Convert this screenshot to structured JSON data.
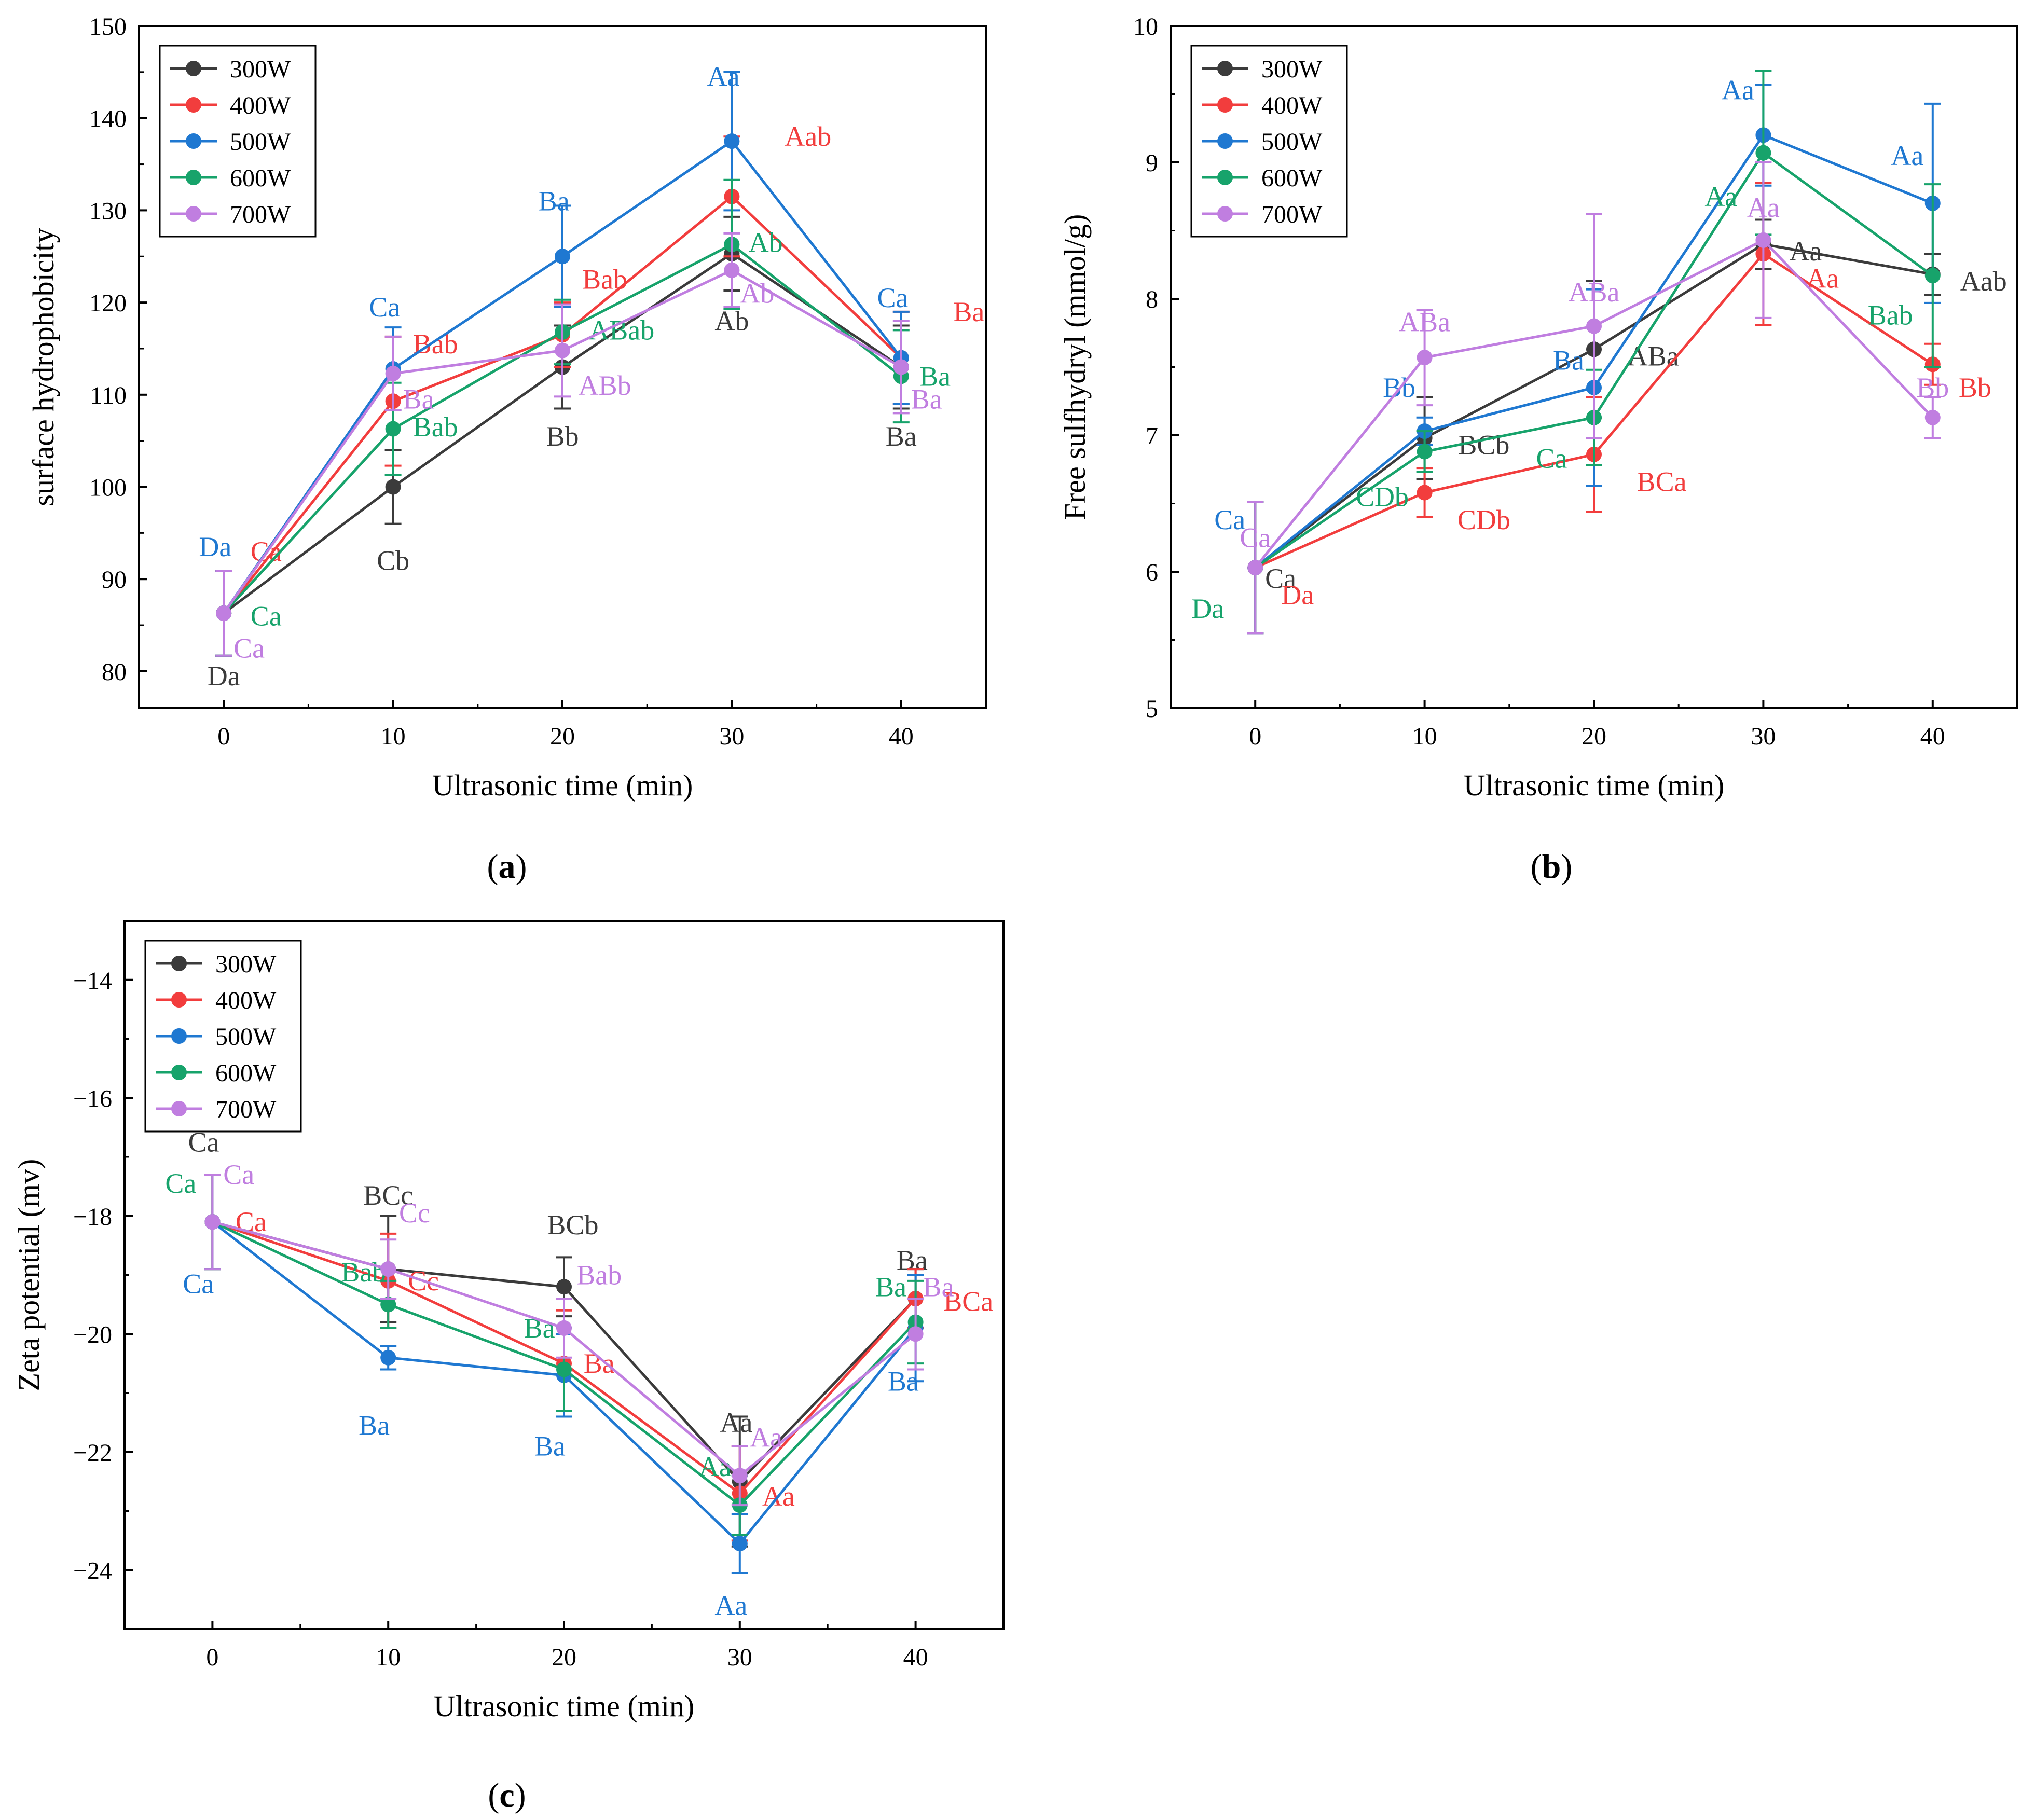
{
  "figure": {
    "series_names": [
      "300W",
      "400W",
      "500W",
      "600W",
      "700W"
    ],
    "series_colors": [
      "#3b3b3b",
      "#f23d3d",
      "#1f78d1",
      "#17a36b",
      "#c07ee0"
    ]
  },
  "chart_data": [
    {
      "id": "a",
      "type": "line",
      "panel_label": "a",
      "title": "",
      "xlabel": "Ultrasonic time (min)",
      "ylabel": "surface hydrophobicity",
      "x": [
        0,
        10,
        20,
        30,
        40
      ],
      "xticks": [
        0,
        10,
        20,
        30,
        40
      ],
      "xlim": [
        -5,
        45
      ],
      "ylim": [
        76,
        150
      ],
      "yticks": [
        80,
        90,
        100,
        110,
        120,
        130,
        140,
        150
      ],
      "legend_position": "top-left",
      "series": [
        {
          "name": "300W",
          "color": "#3b3b3b",
          "values": [
            86.3,
            100.0,
            113.0,
            125.3,
            113.0
          ],
          "errors": [
            4.6,
            4.0,
            4.5,
            4.0,
            4.5
          ],
          "labels": [
            {
              "text": "Da",
              "x": 0,
              "y": 79.5
            },
            {
              "text": "Cb",
              "x": 10,
              "y": 92.0
            },
            {
              "text": "Bb",
              "x": 20,
              "y": 105.5
            },
            {
              "text": "Ab",
              "x": 30,
              "y": 118.0
            },
            {
              "text": "Ba",
              "x": 40,
              "y": 105.5
            }
          ]
        },
        {
          "name": "400W",
          "color": "#f23d3d",
          "values": [
            86.3,
            109.3,
            116.5,
            131.5,
            114.0
          ],
          "errors": [
            4.6,
            7.0,
            3.5,
            6.5,
            5.0
          ],
          "labels": [
            {
              "text": "Ca",
              "x": 2.5,
              "y": 93.0
            },
            {
              "text": "Bab",
              "x": 12.5,
              "y": 115.5
            },
            {
              "text": "Bab",
              "x": 22.5,
              "y": 122.5
            },
            {
              "text": "Aab",
              "x": 34.5,
              "y": 138.0
            },
            {
              "text": "Ba",
              "x": 44.0,
              "y": 119.0
            }
          ]
        },
        {
          "name": "500W",
          "color": "#1f78d1",
          "values": [
            86.3,
            112.8,
            125.0,
            137.5,
            114.0
          ],
          "errors": [
            4.6,
            4.5,
            5.5,
            7.5,
            5.0
          ],
          "labels": [
            {
              "text": "Da",
              "x": -0.5,
              "y": 93.5
            },
            {
              "text": "Ca",
              "x": 9.5,
              "y": 119.5
            },
            {
              "text": "Ba",
              "x": 19.5,
              "y": 131.0
            },
            {
              "text": "Aa",
              "x": 29.5,
              "y": 144.5
            },
            {
              "text": "Ca",
              "x": 39.5,
              "y": 120.5
            }
          ]
        },
        {
          "name": "600W",
          "color": "#17a36b",
          "values": [
            86.3,
            106.3,
            116.8,
            126.3,
            112.0
          ],
          "errors": [
            4.6,
            5.0,
            3.5,
            7.0,
            5.0
          ],
          "labels": [
            {
              "text": "Ca",
              "x": 2.5,
              "y": 86.0
            },
            {
              "text": "Bab",
              "x": 12.5,
              "y": 106.5
            },
            {
              "text": "ABab",
              "x": 23.5,
              "y": 117.0
            },
            {
              "text": "Ab",
              "x": 32.0,
              "y": 126.5
            },
            {
              "text": "Ba",
              "x": 42.0,
              "y": 112.0
            }
          ]
        },
        {
          "name": "700W",
          "color": "#c07ee0",
          "values": [
            86.3,
            112.3,
            114.8,
            123.5,
            113.0
          ],
          "errors": [
            4.6,
            4.0,
            5.0,
            4.0,
            5.0
          ],
          "labels": [
            {
              "text": "Ca",
              "x": 1.5,
              "y": 82.5
            },
            {
              "text": "Ba",
              "x": 11.5,
              "y": 109.5
            },
            {
              "text": "ABb",
              "x": 22.5,
              "y": 111.0
            },
            {
              "text": "Ab",
              "x": 31.5,
              "y": 121.0
            },
            {
              "text": "Ba",
              "x": 41.5,
              "y": 109.5
            }
          ]
        }
      ]
    },
    {
      "id": "b",
      "type": "line",
      "panel_label": "b",
      "title": "",
      "xlabel": "Ultrasonic time (min)",
      "ylabel": "Free sulfhydryl (mmol/g)",
      "x": [
        0,
        10,
        20,
        30,
        40
      ],
      "xticks": [
        0,
        10,
        20,
        30,
        40
      ],
      "xlim": [
        -5,
        45
      ],
      "ylim": [
        5,
        10
      ],
      "yticks": [
        5,
        6,
        7,
        8,
        9,
        10
      ],
      "legend_position": "top-left",
      "series": [
        {
          "name": "300W",
          "color": "#3b3b3b",
          "values": [
            6.03,
            6.98,
            7.63,
            8.4,
            8.18
          ],
          "errors": [
            0.48,
            0.3,
            0.5,
            0.18,
            0.15
          ],
          "labels": [
            {
              "text": "Ca",
              "x": 1.5,
              "y": 5.95
            },
            {
              "text": "BCb",
              "x": 13.5,
              "y": 6.93
            },
            {
              "text": "ABa",
              "x": 23.5,
              "y": 7.58
            },
            {
              "text": "Aa",
              "x": 32.5,
              "y": 8.35
            },
            {
              "text": "Aab",
              "x": 43.0,
              "y": 8.13
            }
          ]
        },
        {
          "name": "400W",
          "color": "#f23d3d",
          "values": [
            6.03,
            6.58,
            6.86,
            8.33,
            7.52
          ],
          "errors": [
            0.48,
            0.18,
            0.42,
            0.52,
            0.15
          ],
          "labels": [
            {
              "text": "Da",
              "x": 2.5,
              "y": 5.83
            },
            {
              "text": "CDb",
              "x": 13.5,
              "y": 6.38
            },
            {
              "text": "BCa",
              "x": 24.0,
              "y": 6.66
            },
            {
              "text": "Aa",
              "x": 33.5,
              "y": 8.15
            },
            {
              "text": "Bb",
              "x": 42.5,
              "y": 7.35
            }
          ]
        },
        {
          "name": "500W",
          "color": "#1f78d1",
          "values": [
            6.03,
            7.03,
            7.35,
            9.2,
            8.7
          ],
          "errors": [
            0.48,
            0.1,
            0.72,
            0.37,
            0.73
          ],
          "labels": [
            {
              "text": "Ca",
              "x": -1.5,
              "y": 6.38
            },
            {
              "text": "Bb",
              "x": 8.5,
              "y": 7.35
            },
            {
              "text": "Ba",
              "x": 18.5,
              "y": 7.55
            },
            {
              "text": "Aa",
              "x": 28.5,
              "y": 9.53
            },
            {
              "text": "Aa",
              "x": 38.5,
              "y": 9.05
            }
          ]
        },
        {
          "name": "600W",
          "color": "#17a36b",
          "values": [
            6.03,
            6.88,
            7.13,
            9.07,
            8.17
          ],
          "errors": [
            0.48,
            0.15,
            0.35,
            0.6,
            0.67
          ],
          "labels": [
            {
              "text": "Da",
              "x": -2.8,
              "y": 5.73
            },
            {
              "text": "CDb",
              "x": 7.5,
              "y": 6.55
            },
            {
              "text": "Ca",
              "x": 17.5,
              "y": 6.83
            },
            {
              "text": "Aa",
              "x": 27.5,
              "y": 8.75
            },
            {
              "text": "Bab",
              "x": 37.5,
              "y": 7.88
            }
          ]
        },
        {
          "name": "700W",
          "color": "#c07ee0",
          "values": [
            6.03,
            7.57,
            7.8,
            8.43,
            7.13
          ],
          "errors": [
            0.48,
            0.35,
            0.82,
            0.57,
            0.15
          ],
          "labels": [
            {
              "text": "Ca",
              "x": 0,
              "y": 6.25
            },
            {
              "text": "ABa",
              "x": 10,
              "y": 7.83
            },
            {
              "text": "ABa",
              "x": 20,
              "y": 8.05
            },
            {
              "text": "Aa",
              "x": 30,
              "y": 8.67
            },
            {
              "text": "Bb",
              "x": 40,
              "y": 7.35
            }
          ]
        }
      ]
    },
    {
      "id": "c",
      "type": "line",
      "panel_label": "c",
      "title": "",
      "xlabel": "Ultrasonic time (min)",
      "ylabel": "Zeta potential (mv)",
      "x": [
        0,
        10,
        20,
        30,
        40
      ],
      "xticks": [
        0,
        10,
        20,
        30,
        40
      ],
      "xlim": [
        -5,
        45
      ],
      "ylim": [
        -25,
        -13
      ],
      "yticks": [
        -24,
        -22,
        -20,
        -18,
        -16,
        -14
      ],
      "ytick_labels": [
        "−24",
        "−22",
        "−20",
        "−18",
        "−16",
        "−14"
      ],
      "legend_position": "top-left",
      "series": [
        {
          "name": "300W",
          "color": "#3b3b3b",
          "values": [
            -18.1,
            -18.9,
            -19.2,
            -22.5,
            -19.4
          ],
          "errors": [
            0.8,
            0.9,
            0.5,
            1.1,
            0.5
          ],
          "labels": [
            {
              "text": "Ca",
              "x": -0.5,
              "y": -16.75
            },
            {
              "text": "BCc",
              "x": 10,
              "y": -17.65
            },
            {
              "text": "BCb",
              "x": 20.5,
              "y": -18.15
            },
            {
              "text": "Aa",
              "x": 29.8,
              "y": -21.5
            },
            {
              "text": "Ba",
              "x": 39.8,
              "y": -18.75
            }
          ]
        },
        {
          "name": "400W",
          "color": "#f23d3d",
          "values": [
            -18.1,
            -19.1,
            -20.5,
            -22.7,
            -19.4
          ],
          "errors": [
            0.8,
            0.8,
            0.9,
            0.8,
            0.5
          ],
          "labels": [
            {
              "text": "Ca",
              "x": 2.2,
              "y": -18.1
            },
            {
              "text": "Cc",
              "x": 12.0,
              "y": -19.1
            },
            {
              "text": "Ba",
              "x": 22.0,
              "y": -20.5
            },
            {
              "text": "Aa",
              "x": 32.2,
              "y": -22.75
            },
            {
              "text": "BCa",
              "x": 43.0,
              "y": -19.45
            }
          ]
        },
        {
          "name": "500W",
          "color": "#1f78d1",
          "values": [
            -18.1,
            -20.4,
            -20.7,
            -23.55,
            -19.9
          ],
          "errors": [
            0.8,
            0.2,
            0.7,
            0.5,
            0.9
          ],
          "labels": [
            {
              "text": "Ca",
              "x": -0.8,
              "y": -19.15
            },
            {
              "text": "Ba",
              "x": 9.2,
              "y": -21.55
            },
            {
              "text": "Ba",
              "x": 19.2,
              "y": -21.9
            },
            {
              "text": "Aa",
              "x": 29.5,
              "y": -24.6
            },
            {
              "text": "Ba",
              "x": 39.3,
              "y": -20.8
            }
          ]
        },
        {
          "name": "600W",
          "color": "#17a36b",
          "values": [
            -18.1,
            -19.5,
            -20.6,
            -22.9,
            -19.8
          ],
          "errors": [
            0.8,
            0.4,
            0.7,
            0.5,
            0.7
          ],
          "labels": [
            {
              "text": "Ca",
              "x": -1.8,
              "y": -17.45
            },
            {
              "text": "Bab",
              "x": 8.6,
              "y": -18.95
            },
            {
              "text": "Ba",
              "x": 18.6,
              "y": -19.9
            },
            {
              "text": "Aa",
              "x": 28.6,
              "y": -22.25
            },
            {
              "text": "Ba",
              "x": 38.6,
              "y": -19.2
            }
          ]
        },
        {
          "name": "700W",
          "color": "#c07ee0",
          "values": [
            -18.1,
            -18.9,
            -19.9,
            -22.4,
            -20.0
          ],
          "errors": [
            0.8,
            0.5,
            0.5,
            0.5,
            0.6
          ],
          "labels": [
            {
              "text": "Ca",
              "x": 1.5,
              "y": -17.3
            },
            {
              "text": "Cc",
              "x": 11.5,
              "y": -17.95
            },
            {
              "text": "Bab",
              "x": 22.0,
              "y": -19.0
            },
            {
              "text": "Aa",
              "x": 31.5,
              "y": -21.75
            },
            {
              "text": "Ba",
              "x": 41.3,
              "y": -19.2
            }
          ]
        }
      ]
    }
  ]
}
